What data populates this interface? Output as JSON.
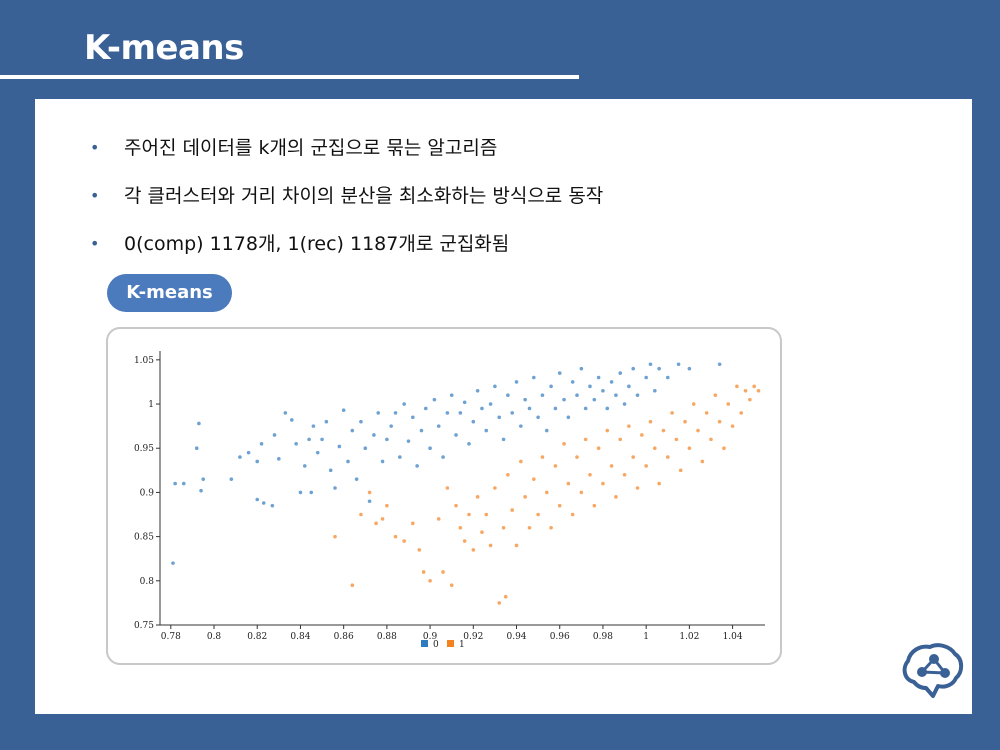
{
  "slide": {
    "title": "K-means",
    "bullets": [
      "주어진 데이터를 k개의 군집으로 묶는 알고리즘",
      "각 클러스터와 거리 차이의 분산을 최소화하는 방식으로 동작",
      "0(comp) 1178개, 1(rec) 1187개로 군집화됨"
    ],
    "bullet_glyph": "•",
    "pill_label": "K-means",
    "logo_icon": "brain-network-icon"
  },
  "colors": {
    "background": "#3a6196",
    "pill": "#4c7bbd",
    "series_0": "#2f7bbf",
    "series_1": "#f58220"
  },
  "chart_data": {
    "type": "scatter",
    "xlim": [
      0.775,
      1.055
    ],
    "ylim": [
      0.75,
      1.06
    ],
    "x_ticks": [
      0.78,
      0.8,
      0.82,
      0.84,
      0.86,
      0.88,
      0.9,
      0.92,
      0.94,
      0.96,
      0.98,
      1,
      1.02,
      1.04
    ],
    "x_tick_labels": [
      "0.78",
      "0.8",
      "0.82",
      "0.84",
      "0.86",
      "0.88",
      "0.9",
      "0.92",
      "0.94",
      "0.96",
      "0.98",
      "1",
      "1.02",
      "1.04"
    ],
    "y_ticks": [
      0.75,
      0.8,
      0.85,
      0.9,
      0.95,
      1,
      1.05
    ],
    "y_tick_labels": [
      "0.75",
      "0.8",
      "0.85",
      "0.9",
      "0.95",
      "1",
      "1.05"
    ],
    "grid": false,
    "legend_position": "bottom-center",
    "series": [
      {
        "name": "0",
        "color": "#2f7bbf",
        "points": [
          [
            0.781,
            0.82
          ],
          [
            0.782,
            0.91
          ],
          [
            0.786,
            0.91
          ],
          [
            0.792,
            0.95
          ],
          [
            0.793,
            0.978
          ],
          [
            0.795,
            0.915
          ],
          [
            0.794,
            0.902
          ],
          [
            0.808,
            0.915
          ],
          [
            0.812,
            0.94
          ],
          [
            0.816,
            0.945
          ],
          [
            0.82,
            0.935
          ],
          [
            0.822,
            0.955
          ],
          [
            0.82,
            0.892
          ],
          [
            0.823,
            0.888
          ],
          [
            0.827,
            0.885
          ],
          [
            0.828,
            0.965
          ],
          [
            0.83,
            0.938
          ],
          [
            0.833,
            0.99
          ],
          [
            0.836,
            0.982
          ],
          [
            0.838,
            0.955
          ],
          [
            0.84,
            0.9
          ],
          [
            0.842,
            0.93
          ],
          [
            0.844,
            0.96
          ],
          [
            0.846,
            0.975
          ],
          [
            0.845,
            0.9
          ],
          [
            0.848,
            0.945
          ],
          [
            0.85,
            0.96
          ],
          [
            0.852,
            0.98
          ],
          [
            0.854,
            0.925
          ],
          [
            0.856,
            0.905
          ],
          [
            0.858,
            0.952
          ],
          [
            0.86,
            0.993
          ],
          [
            0.862,
            0.935
          ],
          [
            0.864,
            0.97
          ],
          [
            0.866,
            0.915
          ],
          [
            0.868,
            0.98
          ],
          [
            0.87,
            0.95
          ],
          [
            0.872,
            0.89
          ],
          [
            0.874,
            0.965
          ],
          [
            0.876,
            0.99
          ],
          [
            0.878,
            0.935
          ],
          [
            0.88,
            0.96
          ],
          [
            0.882,
            0.975
          ],
          [
            0.884,
            0.99
          ],
          [
            0.886,
            0.94
          ],
          [
            0.888,
            1.0
          ],
          [
            0.89,
            0.958
          ],
          [
            0.892,
            0.985
          ],
          [
            0.894,
            0.93
          ],
          [
            0.896,
            0.97
          ],
          [
            0.898,
            0.995
          ],
          [
            0.9,
            0.95
          ],
          [
            0.902,
            1.005
          ],
          [
            0.904,
            0.975
          ],
          [
            0.906,
            0.94
          ],
          [
            0.908,
            0.99
          ],
          [
            0.91,
            1.01
          ],
          [
            0.912,
            0.965
          ],
          [
            0.914,
            0.99
          ],
          [
            0.916,
            1.002
          ],
          [
            0.918,
            0.955
          ],
          [
            0.92,
            0.98
          ],
          [
            0.922,
            1.015
          ],
          [
            0.924,
            0.995
          ],
          [
            0.926,
            0.97
          ],
          [
            0.928,
            1.0
          ],
          [
            0.93,
            1.02
          ],
          [
            0.932,
            0.985
          ],
          [
            0.934,
            0.96
          ],
          [
            0.936,
            1.01
          ],
          [
            0.938,
            0.99
          ],
          [
            0.94,
            1.025
          ],
          [
            0.942,
            0.975
          ],
          [
            0.944,
            1.005
          ],
          [
            0.946,
            0.995
          ],
          [
            0.948,
            1.03
          ],
          [
            0.95,
            0.985
          ],
          [
            0.952,
            1.01
          ],
          [
            0.954,
            0.97
          ],
          [
            0.956,
            1.02
          ],
          [
            0.958,
            0.995
          ],
          [
            0.96,
            1.035
          ],
          [
            0.962,
            1.005
          ],
          [
            0.964,
            0.985
          ],
          [
            0.966,
            1.025
          ],
          [
            0.968,
            1.01
          ],
          [
            0.97,
            1.04
          ],
          [
            0.972,
            0.995
          ],
          [
            0.974,
            1.02
          ],
          [
            0.976,
            1.005
          ],
          [
            0.978,
            1.03
          ],
          [
            0.98,
            1.015
          ],
          [
            0.982,
            0.995
          ],
          [
            0.984,
            1.025
          ],
          [
            0.986,
            1.01
          ],
          [
            0.988,
            1.035
          ],
          [
            0.99,
            1.0
          ],
          [
            0.992,
            1.02
          ],
          [
            0.994,
            1.04
          ],
          [
            0.996,
            1.01
          ],
          [
            1.0,
            1.03
          ],
          [
            1.002,
            1.045
          ],
          [
            1.004,
            1.015
          ],
          [
            1.006,
            1.04
          ],
          [
            1.01,
            1.03
          ],
          [
            1.015,
            1.045
          ],
          [
            1.02,
            1.04
          ],
          [
            1.034,
            1.045
          ]
        ]
      },
      {
        "name": "1",
        "color": "#f58220",
        "points": [
          [
            0.856,
            0.85
          ],
          [
            0.864,
            0.795
          ],
          [
            0.868,
            0.875
          ],
          [
            0.872,
            0.9
          ],
          [
            0.875,
            0.865
          ],
          [
            0.878,
            0.87
          ],
          [
            0.88,
            0.885
          ],
          [
            0.884,
            0.85
          ],
          [
            0.888,
            0.845
          ],
          [
            0.892,
            0.865
          ],
          [
            0.895,
            0.835
          ],
          [
            0.897,
            0.81
          ],
          [
            0.9,
            0.8
          ],
          [
            0.904,
            0.87
          ],
          [
            0.906,
            0.81
          ],
          [
            0.908,
            0.905
          ],
          [
            0.91,
            0.795
          ],
          [
            0.912,
            0.885
          ],
          [
            0.914,
            0.86
          ],
          [
            0.916,
            0.845
          ],
          [
            0.918,
            0.875
          ],
          [
            0.92,
            0.835
          ],
          [
            0.922,
            0.895
          ],
          [
            0.924,
            0.855
          ],
          [
            0.926,
            0.875
          ],
          [
            0.928,
            0.84
          ],
          [
            0.93,
            0.905
          ],
          [
            0.932,
            0.775
          ],
          [
            0.934,
            0.86
          ],
          [
            0.935,
            0.782
          ],
          [
            0.936,
            0.92
          ],
          [
            0.938,
            0.88
          ],
          [
            0.94,
            0.84
          ],
          [
            0.942,
            0.935
          ],
          [
            0.944,
            0.895
          ],
          [
            0.946,
            0.86
          ],
          [
            0.948,
            0.915
          ],
          [
            0.95,
            0.875
          ],
          [
            0.952,
            0.94
          ],
          [
            0.954,
            0.9
          ],
          [
            0.956,
            0.86
          ],
          [
            0.958,
            0.93
          ],
          [
            0.96,
            0.885
          ],
          [
            0.962,
            0.955
          ],
          [
            0.964,
            0.91
          ],
          [
            0.966,
            0.875
          ],
          [
            0.968,
            0.94
          ],
          [
            0.97,
            0.9
          ],
          [
            0.972,
            0.96
          ],
          [
            0.974,
            0.92
          ],
          [
            0.976,
            0.885
          ],
          [
            0.978,
            0.95
          ],
          [
            0.98,
            0.91
          ],
          [
            0.982,
            0.97
          ],
          [
            0.984,
            0.93
          ],
          [
            0.986,
            0.895
          ],
          [
            0.988,
            0.96
          ],
          [
            0.99,
            0.92
          ],
          [
            0.992,
            0.975
          ],
          [
            0.994,
            0.94
          ],
          [
            0.996,
            0.905
          ],
          [
            0.998,
            0.965
          ],
          [
            1.0,
            0.93
          ],
          [
            1.002,
            0.98
          ],
          [
            1.004,
            0.95
          ],
          [
            1.006,
            0.91
          ],
          [
            1.008,
            0.97
          ],
          [
            1.01,
            0.94
          ],
          [
            1.012,
            0.99
          ],
          [
            1.014,
            0.96
          ],
          [
            1.016,
            0.925
          ],
          [
            1.018,
            0.98
          ],
          [
            1.02,
            0.95
          ],
          [
            1.022,
            1.0
          ],
          [
            1.024,
            0.97
          ],
          [
            1.026,
            0.935
          ],
          [
            1.028,
            0.99
          ],
          [
            1.03,
            0.96
          ],
          [
            1.032,
            1.01
          ],
          [
            1.034,
            0.98
          ],
          [
            1.036,
            0.95
          ],
          [
            1.038,
            1.0
          ],
          [
            1.04,
            0.975
          ],
          [
            1.042,
            1.02
          ],
          [
            1.044,
            0.99
          ],
          [
            1.046,
            1.015
          ],
          [
            1.048,
            1.005
          ],
          [
            1.05,
            1.02
          ],
          [
            1.052,
            1.015
          ]
        ]
      }
    ]
  }
}
